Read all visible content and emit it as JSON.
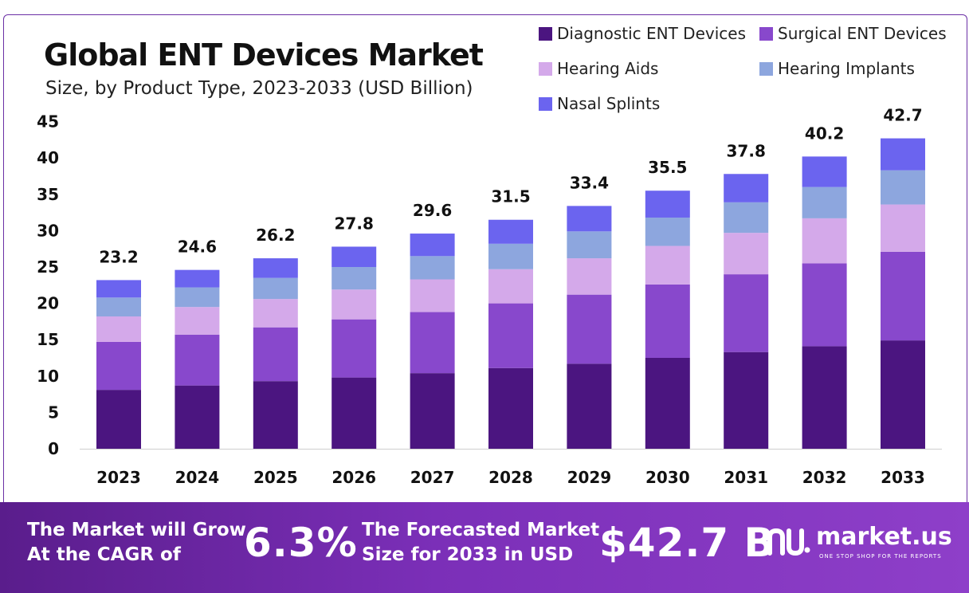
{
  "chart_data": {
    "type": "stacked-bar",
    "title": "Global ENT Devices Market",
    "subtitle": "Size, by Product Type, 2023-2033 (USD Billion)",
    "categories": [
      "2023",
      "2024",
      "2025",
      "2026",
      "2027",
      "2028",
      "2029",
      "2030",
      "2031",
      "2032",
      "2033"
    ],
    "series": [
      {
        "name": "Diagnostic ENT Devices",
        "color": "#4b1580",
        "values": [
          8.1,
          8.7,
          9.3,
          9.8,
          10.4,
          11.1,
          11.7,
          12.5,
          13.3,
          14.1,
          14.9
        ]
      },
      {
        "name": "Surgical ENT Devices",
        "color": "#8848cc",
        "values": [
          6.6,
          7.0,
          7.4,
          8.0,
          8.4,
          8.9,
          9.5,
          10.1,
          10.7,
          11.4,
          12.2
        ]
      },
      {
        "name": "Hearing Aids",
        "color": "#d4a9ea",
        "values": [
          3.5,
          3.8,
          3.9,
          4.1,
          4.5,
          4.7,
          5.0,
          5.3,
          5.7,
          6.2,
          6.5
        ]
      },
      {
        "name": "Hearing Implants",
        "color": "#8da6de",
        "values": [
          2.6,
          2.7,
          2.9,
          3.1,
          3.2,
          3.5,
          3.7,
          3.9,
          4.2,
          4.3,
          4.7
        ]
      },
      {
        "name": "Nasal Splints",
        "color": "#6b64ef",
        "values": [
          2.4,
          2.4,
          2.7,
          2.8,
          3.1,
          3.3,
          3.5,
          3.7,
          3.9,
          4.2,
          4.4
        ]
      }
    ],
    "totals": [
      "23.2",
      "24.6",
      "26.2",
      "27.8",
      "29.6",
      "31.5",
      "33.4",
      "35.5",
      "37.8",
      "40.2",
      "42.7"
    ],
    "yticks": [
      "0",
      "5",
      "10",
      "15",
      "20",
      "25",
      "30",
      "35",
      "40",
      "45"
    ],
    "ylim": [
      0,
      45
    ],
    "legend_position": "top-right"
  },
  "banner": {
    "cagr_label_line1": "The Market will Grow",
    "cagr_label_line2": "At the CAGR of",
    "cagr_value": "6.3%",
    "forecast_label_line1": "The Forecasted Market",
    "forecast_label_line2": "Size for 2033 in USD",
    "forecast_value": "$42.7 B",
    "brand": "market.us",
    "brand_tagline": "ONE STOP SHOP FOR THE REPORTS"
  }
}
